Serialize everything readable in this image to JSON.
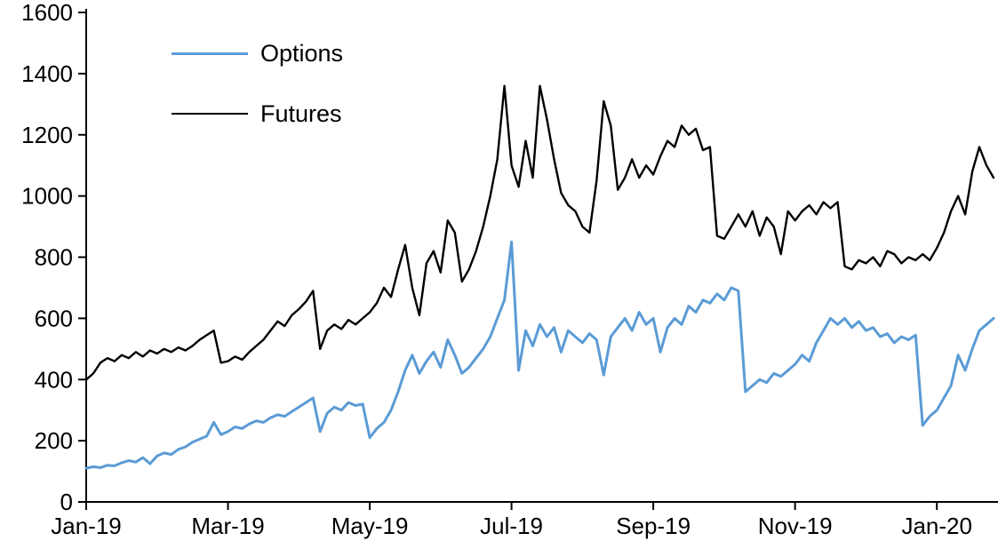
{
  "chart_data": {
    "type": "line",
    "title": "",
    "xlabel": "",
    "ylabel": "",
    "grid": false,
    "legend_position": "top-left",
    "xlim": [
      0,
      12.8
    ],
    "ylim": [
      0,
      1600
    ],
    "yticks": [
      0,
      200,
      400,
      600,
      800,
      1000,
      1200,
      1400,
      1600
    ],
    "xticks": {
      "positions": [
        0,
        2,
        4,
        6,
        8,
        10,
        12
      ],
      "labels": [
        "Jan-19",
        "Mar-19",
        "May-19",
        "Jul-19",
        "Sep-19",
        "Nov-19",
        "Jan-20"
      ]
    },
    "x_unit": "months since Jan-2019",
    "x": [
      0,
      0.1,
      0.2,
      0.3,
      0.4,
      0.5,
      0.6,
      0.7,
      0.8,
      0.9,
      1,
      1.1,
      1.2,
      1.3,
      1.4,
      1.5,
      1.6,
      1.7,
      1.8,
      1.9,
      2,
      2.1,
      2.2,
      2.3,
      2.4,
      2.5,
      2.6,
      2.7,
      2.8,
      2.9,
      3,
      3.1,
      3.2,
      3.3,
      3.4,
      3.5,
      3.6,
      3.7,
      3.8,
      3.9,
      4,
      4.1,
      4.2,
      4.3,
      4.4,
      4.5,
      4.6,
      4.7,
      4.8,
      4.9,
      5,
      5.1,
      5.2,
      5.3,
      5.4,
      5.5,
      5.6,
      5.7,
      5.8,
      5.9,
      6,
      6.1,
      6.2,
      6.3,
      6.4,
      6.5,
      6.6,
      6.7,
      6.8,
      6.9,
      7,
      7.1,
      7.2,
      7.3,
      7.4,
      7.5,
      7.6,
      7.7,
      7.8,
      7.9,
      8,
      8.1,
      8.2,
      8.3,
      8.4,
      8.5,
      8.6,
      8.7,
      8.8,
      8.9,
      9,
      9.1,
      9.2,
      9.3,
      9.4,
      9.5,
      9.6,
      9.7,
      9.8,
      9.9,
      10,
      10.1,
      10.2,
      10.3,
      10.4,
      10.5,
      10.6,
      10.7,
      10.8,
      10.9,
      11,
      11.1,
      11.2,
      11.3,
      11.4,
      11.5,
      11.6,
      11.7,
      11.8,
      11.9,
      12,
      12.1,
      12.2,
      12.3,
      12.4,
      12.5,
      12.6,
      12.7,
      12.8
    ],
    "series": [
      {
        "name": "Options",
        "color": "#5b9bd5",
        "width": 3,
        "values": [
          110,
          115,
          112,
          120,
          118,
          128,
          135,
          130,
          145,
          125,
          150,
          160,
          155,
          172,
          180,
          195,
          205,
          215,
          260,
          220,
          230,
          245,
          240,
          255,
          265,
          260,
          275,
          285,
          280,
          295,
          310,
          325,
          340,
          230,
          290,
          310,
          300,
          325,
          315,
          320,
          210,
          240,
          260,
          300,
          360,
          430,
          480,
          420,
          460,
          490,
          440,
          530,
          480,
          420,
          440,
          470,
          500,
          540,
          600,
          660,
          850,
          430,
          560,
          510,
          580,
          540,
          570,
          490,
          560,
          540,
          520,
          550,
          530,
          415,
          540,
          570,
          600,
          560,
          620,
          580,
          600,
          490,
          570,
          600,
          580,
          640,
          620,
          660,
          650,
          680,
          660,
          700,
          690,
          360,
          380,
          400,
          390,
          420,
          410,
          430,
          450,
          480,
          460,
          520,
          560,
          600,
          580,
          600,
          570,
          590,
          560,
          570,
          540,
          550,
          520,
          540,
          530,
          545,
          250,
          280,
          300,
          340,
          380,
          480,
          430,
          500,
          560,
          580,
          600
        ]
      },
      {
        "name": "Futures",
        "color": "#000000",
        "width": 2.4,
        "values": [
          400,
          420,
          455,
          470,
          460,
          480,
          470,
          490,
          475,
          495,
          485,
          500,
          490,
          505,
          495,
          510,
          530,
          545,
          560,
          455,
          460,
          475,
          465,
          490,
          510,
          530,
          560,
          590,
          575,
          610,
          630,
          655,
          690,
          500,
          560,
          580,
          565,
          595,
          580,
          600,
          620,
          650,
          700,
          670,
          760,
          840,
          700,
          610,
          780,
          820,
          750,
          920,
          880,
          720,
          760,
          820,
          900,
          1000,
          1120,
          1360,
          1100,
          1030,
          1180,
          1060,
          1360,
          1250,
          1120,
          1010,
          970,
          950,
          900,
          880,
          1050,
          1310,
          1230,
          1020,
          1060,
          1120,
          1060,
          1100,
          1070,
          1130,
          1180,
          1160,
          1230,
          1200,
          1220,
          1150,
          1160,
          870,
          860,
          900,
          940,
          900,
          950,
          870,
          930,
          900,
          810,
          950,
          920,
          950,
          970,
          940,
          980,
          960,
          980,
          770,
          760,
          790,
          780,
          800,
          770,
          820,
          810,
          780,
          800,
          790,
          810,
          790,
          830,
          880,
          950,
          1000,
          940,
          1080,
          1160,
          1100,
          1060
        ]
      }
    ]
  }
}
